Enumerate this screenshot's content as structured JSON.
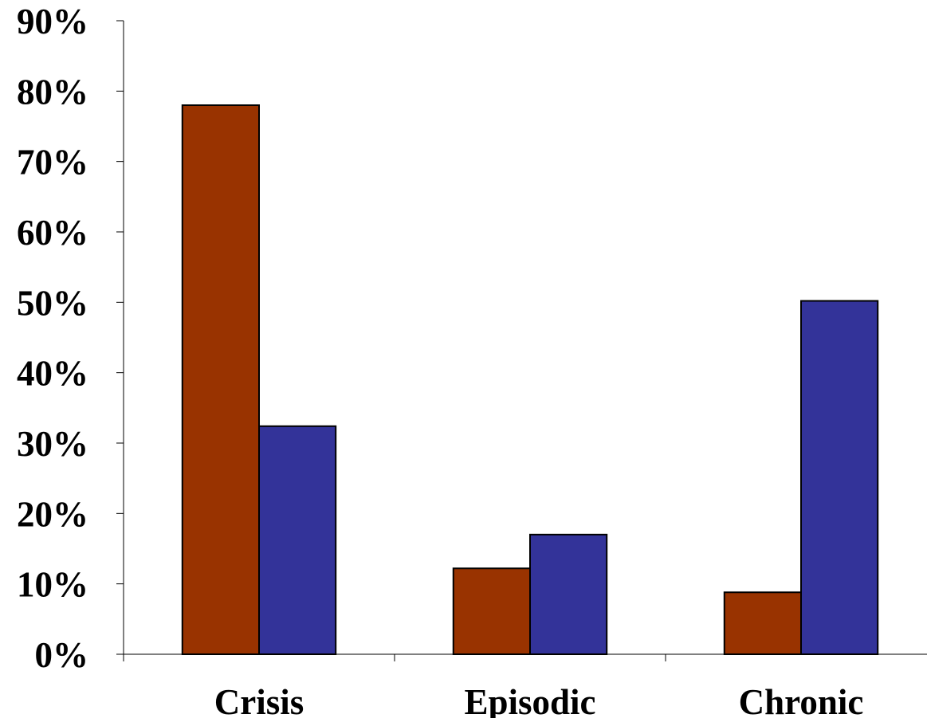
{
  "chart_data": {
    "type": "bar",
    "categories": [
      "Crisis",
      "Episodic",
      "Chronic"
    ],
    "series": [
      {
        "values": [
          0.78,
          0.122,
          0.088
        ],
        "color": "#993300"
      },
      {
        "values": [
          0.324,
          0.17,
          0.502
        ],
        "color": "#333399"
      }
    ],
    "ylim": [
      0,
      0.9
    ],
    "y_ticks": [
      {
        "value": 0.0,
        "label": "0%"
      },
      {
        "value": 0.1,
        "label": "10%"
      },
      {
        "value": 0.2,
        "label": "20%"
      },
      {
        "value": 0.3,
        "label": "30%"
      },
      {
        "value": 0.4,
        "label": "40%"
      },
      {
        "value": 0.5,
        "label": "50%"
      },
      {
        "value": 0.6,
        "label": "60%"
      },
      {
        "value": 0.7,
        "label": "70%"
      },
      {
        "value": 0.8,
        "label": "80%"
      },
      {
        "value": 0.9,
        "label": "90%"
      }
    ],
    "grid": false,
    "legend": "none"
  }
}
